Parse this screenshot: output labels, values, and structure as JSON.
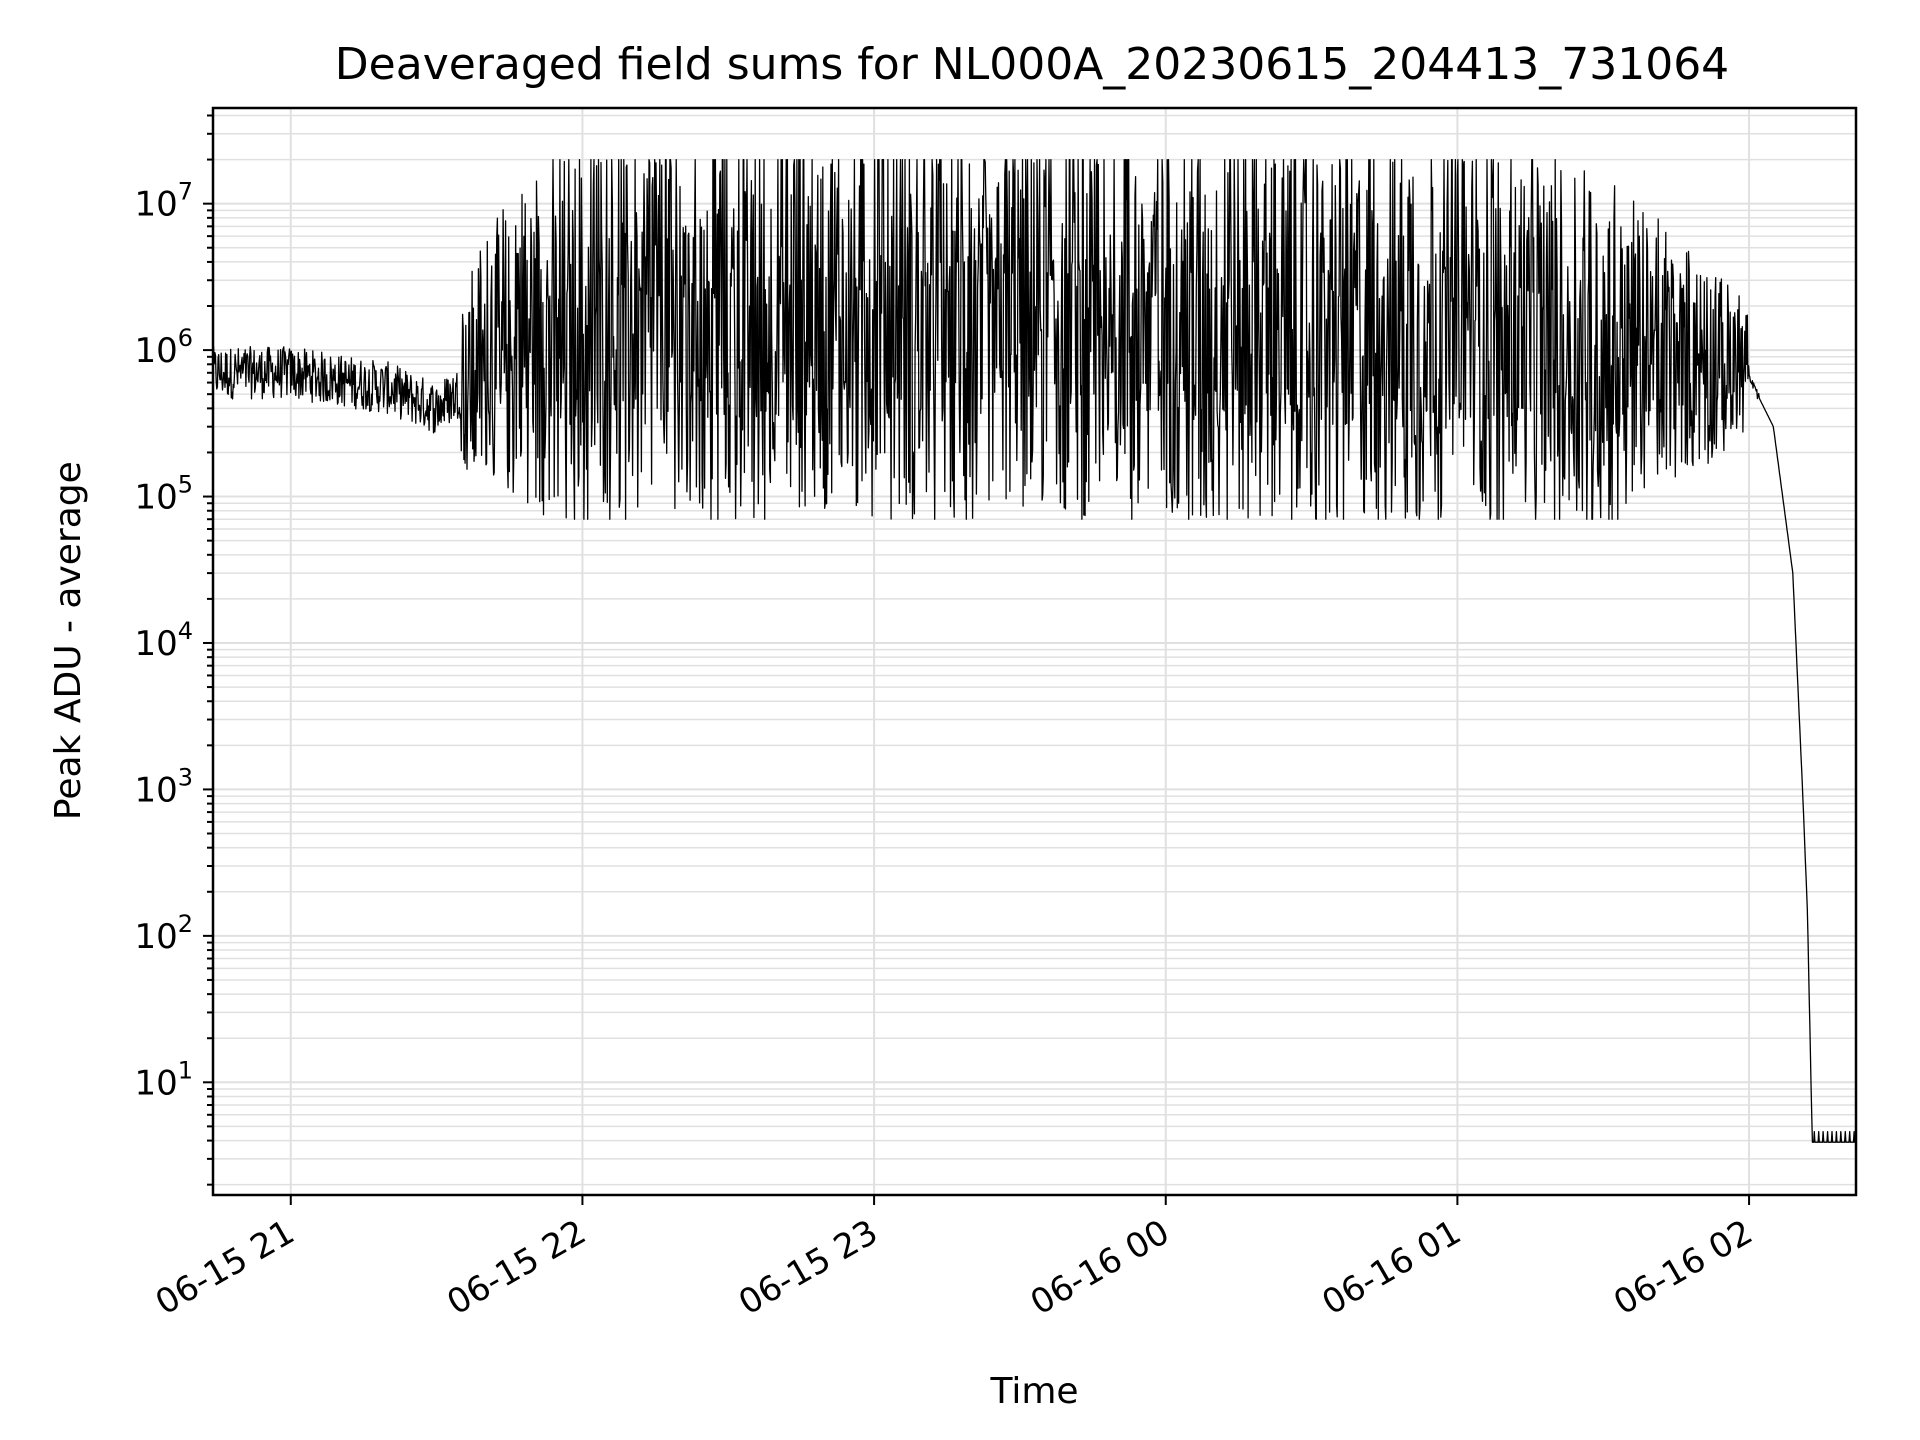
{
  "chart_data": {
    "type": "line",
    "title": "Deaveraged field sums for NL000A_20230615_204413_731064",
    "xlabel": "Time",
    "ylabel": "Peak ADU - average",
    "yscale": "log",
    "ylim": [
      1.7,
      45000000
    ],
    "xlim": [
      "2023-06-15 20:44",
      "2023-06-16 02:22"
    ],
    "grid": true,
    "grid_minor": true,
    "line_color": "#000000",
    "grid_color": "#e0e0e0",
    "x_ticks": [
      {
        "t": "2023-06-15 21:00",
        "label": "06-15 21"
      },
      {
        "t": "2023-06-15 22:00",
        "label": "06-15 22"
      },
      {
        "t": "2023-06-15 23:00",
        "label": "06-15 23"
      },
      {
        "t": "2023-06-16 00:00",
        "label": "06-16 00"
      },
      {
        "t": "2023-06-16 01:00",
        "label": "06-16 01"
      },
      {
        "t": "2023-06-16 02:00",
        "label": "06-16 02"
      }
    ],
    "y_ticks": [
      {
        "value": 10,
        "base": "10",
        "exp": "1"
      },
      {
        "value": 100,
        "base": "10",
        "exp": "2"
      },
      {
        "value": 1000,
        "base": "10",
        "exp": "3"
      },
      {
        "value": 10000,
        "base": "10",
        "exp": "4"
      },
      {
        "value": 100000,
        "base": "10",
        "exp": "5"
      },
      {
        "value": 1000000,
        "base": "10",
        "exp": "6"
      },
      {
        "value": 10000000,
        "base": "10",
        "exp": "7"
      }
    ],
    "series": [
      {
        "style": "thin line, noisy",
        "points": [
          [
            "2023-06-15 20:44",
            700000
          ],
          [
            "2023-06-15 21:00",
            700000
          ],
          [
            "2023-06-15 21:20",
            550000
          ],
          [
            "2023-06-15 21:30",
            400000
          ],
          [
            "2023-06-15 21:45",
            900000
          ],
          [
            "2023-06-15 22:00",
            1000000
          ],
          [
            "2023-06-15 22:30",
            1200000
          ],
          [
            "2023-06-15 23:00",
            1200000
          ],
          [
            "2023-06-15 23:30",
            1300000
          ],
          [
            "2023-06-16 00:00",
            1300000
          ],
          [
            "2023-06-16 00:30",
            1100000
          ],
          [
            "2023-06-16 01:00",
            1000000
          ],
          [
            "2023-06-16 01:30",
            700000
          ],
          [
            "2023-06-16 02:00",
            650000
          ],
          [
            "2023-06-16 02:05",
            300000
          ],
          [
            "2023-06-16 02:09",
            30000
          ],
          [
            "2023-06-16 02:11",
            1000
          ],
          [
            "2023-06-16 02:12",
            150
          ],
          [
            "2023-06-16 02:13",
            4
          ],
          [
            "2023-06-16 02:22",
            4
          ]
        ],
        "spike_high_range": [
          1000000,
          20000000
        ],
        "spike_low_range": [
          70000,
          500000
        ]
      }
    ]
  }
}
